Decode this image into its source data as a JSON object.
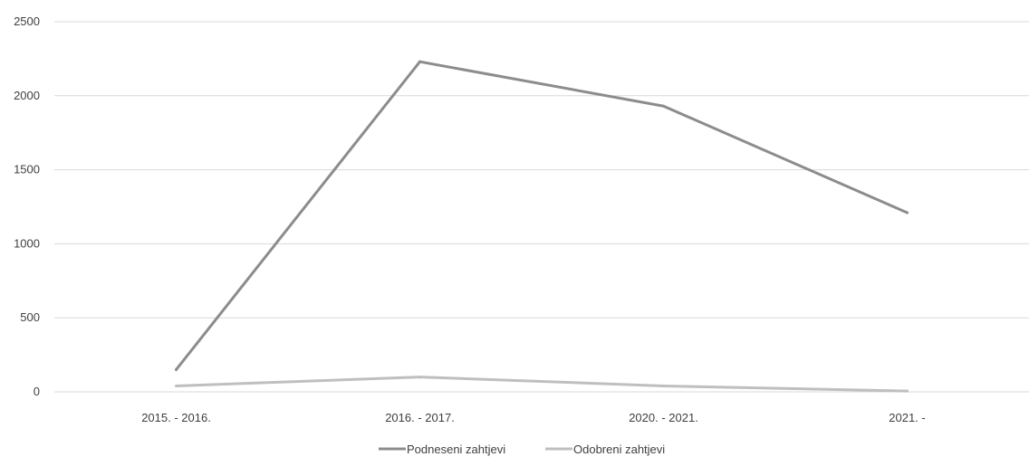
{
  "chart_data": {
    "type": "line",
    "categories": [
      "2015. - 2016.",
      "2016. - 2017.",
      "2020. - 2021.",
      "2021. -"
    ],
    "series": [
      {
        "name": "Podneseni zahtjevi",
        "values": [
          150,
          2230,
          1930,
          1210
        ],
        "color": "#8c8c8c"
      },
      {
        "name": "Odobreni zahtjevi",
        "values": [
          40,
          100,
          40,
          5
        ],
        "color": "#bfbfbf"
      }
    ],
    "ylim": [
      0,
      2500
    ],
    "yticks": [
      0,
      500,
      1000,
      1500,
      2000,
      2500
    ],
    "grid": true,
    "legend": "bottom",
    "title": "",
    "xlabel": "",
    "ylabel": ""
  }
}
